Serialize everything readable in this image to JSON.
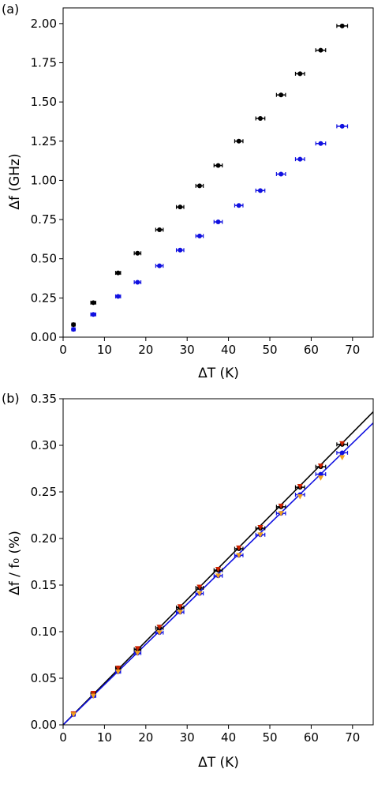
{
  "chart_data": [
    {
      "panel_label": "(a)",
      "type": "scatter",
      "xlabel": "ΔT (K)",
      "ylabel": "Δf (GHz)",
      "xlim": [
        0,
        75
      ],
      "ylim": [
        0,
        2.1
      ],
      "xticks": [
        0,
        10,
        20,
        30,
        40,
        50,
        60,
        70
      ],
      "yticks": [
        0.0,
        0.25,
        0.5,
        0.75,
        1.0,
        1.25,
        1.5,
        1.75,
        2.0
      ],
      "ytick_labels": [
        "0.00",
        "0.25",
        "0.50",
        "0.75",
        "1.00",
        "1.25",
        "1.50",
        "1.75",
        "2.00"
      ],
      "grid": false,
      "series": [
        {
          "color": "#000000",
          "points": [
            {
              "x": 2.5,
              "y": 0.08,
              "xerr": 0.4
            },
            {
              "x": 7.3,
              "y": 0.22,
              "xerr": 0.6
            },
            {
              "x": 13.3,
              "y": 0.41,
              "xerr": 0.6
            },
            {
              "x": 18.0,
              "y": 0.535,
              "xerr": 0.8
            },
            {
              "x": 23.3,
              "y": 0.685,
              "xerr": 0.9
            },
            {
              "x": 28.3,
              "y": 0.83,
              "xerr": 0.9
            },
            {
              "x": 33.0,
              "y": 0.965,
              "xerr": 0.9
            },
            {
              "x": 37.5,
              "y": 1.095,
              "xerr": 1.0
            },
            {
              "x": 42.5,
              "y": 1.25,
              "xerr": 1.0
            },
            {
              "x": 47.7,
              "y": 1.395,
              "xerr": 1.1
            },
            {
              "x": 52.7,
              "y": 1.545,
              "xerr": 1.1
            },
            {
              "x": 57.3,
              "y": 1.68,
              "xerr": 1.1
            },
            {
              "x": 62.3,
              "y": 1.83,
              "xerr": 1.2
            },
            {
              "x": 67.5,
              "y": 1.985,
              "xerr": 1.3
            }
          ]
        },
        {
          "color": "#1010e0",
          "points": [
            {
              "x": 2.5,
              "y": 0.05,
              "xerr": 0.4
            },
            {
              "x": 7.3,
              "y": 0.145,
              "xerr": 0.6
            },
            {
              "x": 13.3,
              "y": 0.26,
              "xerr": 0.6
            },
            {
              "x": 18.0,
              "y": 0.35,
              "xerr": 0.8
            },
            {
              "x": 23.3,
              "y": 0.455,
              "xerr": 0.9
            },
            {
              "x": 28.3,
              "y": 0.555,
              "xerr": 0.9
            },
            {
              "x": 33.0,
              "y": 0.645,
              "xerr": 0.9
            },
            {
              "x": 37.5,
              "y": 0.735,
              "xerr": 1.0
            },
            {
              "x": 42.5,
              "y": 0.84,
              "xerr": 1.0
            },
            {
              "x": 47.7,
              "y": 0.935,
              "xerr": 1.1
            },
            {
              "x": 52.7,
              "y": 1.04,
              "xerr": 1.1
            },
            {
              "x": 57.3,
              "y": 1.135,
              "xerr": 1.1
            },
            {
              "x": 62.3,
              "y": 1.235,
              "xerr": 1.2
            },
            {
              "x": 67.5,
              "y": 1.345,
              "xerr": 1.3
            }
          ]
        }
      ]
    },
    {
      "panel_label": "(b)",
      "type": "scatter",
      "xlabel": "ΔT (K)",
      "ylabel": "Δf / f₀ (%)",
      "xlim": [
        0,
        75
      ],
      "ylim": [
        0,
        0.35
      ],
      "xticks": [
        0,
        10,
        20,
        30,
        40,
        50,
        60,
        70
      ],
      "yticks": [
        0.0,
        0.05,
        0.1,
        0.15,
        0.2,
        0.25,
        0.3,
        0.35
      ],
      "ytick_labels": [
        "0.00",
        "0.05",
        "0.10",
        "0.15",
        "0.20",
        "0.25",
        "0.30",
        "0.35"
      ],
      "grid": false,
      "fit_lines": [
        {
          "color": "#000000",
          "x": [
            0,
            75
          ],
          "y": [
            0.0,
            0.336
          ]
        },
        {
          "color": "#1010e0",
          "x": [
            0,
            75
          ],
          "y": [
            0.0,
            0.324
          ]
        }
      ],
      "series": [
        {
          "color": "#000000",
          "points": [
            {
              "x": 2.5,
              "y": 0.012,
              "xerr": 0.4
            },
            {
              "x": 7.3,
              "y": 0.033,
              "xerr": 0.6
            },
            {
              "x": 13.3,
              "y": 0.061,
              "xerr": 0.6
            },
            {
              "x": 18.0,
              "y": 0.081,
              "xerr": 0.8
            },
            {
              "x": 23.3,
              "y": 0.104,
              "xerr": 0.9
            },
            {
              "x": 28.3,
              "y": 0.126,
              "xerr": 0.9
            },
            {
              "x": 33.0,
              "y": 0.147,
              "xerr": 0.9
            },
            {
              "x": 37.5,
              "y": 0.166,
              "xerr": 1.0
            },
            {
              "x": 42.5,
              "y": 0.189,
              "xerr": 1.0
            },
            {
              "x": 47.7,
              "y": 0.211,
              "xerr": 1.1
            },
            {
              "x": 52.7,
              "y": 0.234,
              "xerr": 1.1
            },
            {
              "x": 57.3,
              "y": 0.255,
              "xerr": 1.1
            },
            {
              "x": 62.3,
              "y": 0.277,
              "xerr": 1.2
            },
            {
              "x": 67.5,
              "y": 0.301,
              "xerr": 1.3
            }
          ]
        },
        {
          "color": "#1010e0",
          "points": [
            {
              "x": 2.5,
              "y": 0.011,
              "xerr": 0.4
            },
            {
              "x": 7.3,
              "y": 0.031,
              "xerr": 0.6
            },
            {
              "x": 13.3,
              "y": 0.057,
              "xerr": 0.6
            },
            {
              "x": 18.0,
              "y": 0.077,
              "xerr": 0.8
            },
            {
              "x": 23.3,
              "y": 0.099,
              "xerr": 0.9
            },
            {
              "x": 28.3,
              "y": 0.121,
              "xerr": 0.9
            },
            {
              "x": 33.0,
              "y": 0.141,
              "xerr": 0.9
            },
            {
              "x": 37.5,
              "y": 0.16,
              "xerr": 1.0
            },
            {
              "x": 42.5,
              "y": 0.182,
              "xerr": 1.0
            },
            {
              "x": 47.7,
              "y": 0.204,
              "xerr": 1.1
            },
            {
              "x": 52.7,
              "y": 0.227,
              "xerr": 1.1
            },
            {
              "x": 57.3,
              "y": 0.247,
              "xerr": 1.1
            },
            {
              "x": 62.3,
              "y": 0.269,
              "xerr": 1.2
            },
            {
              "x": 67.5,
              "y": 0.292,
              "xerr": 1.3
            }
          ]
        },
        {
          "color": "#cc2200",
          "marker": "triangle-down",
          "points": [
            {
              "x": 2.5,
              "y": 0.012
            },
            {
              "x": 7.3,
              "y": 0.034
            },
            {
              "x": 13.3,
              "y": 0.061
            },
            {
              "x": 18.0,
              "y": 0.082
            },
            {
              "x": 23.3,
              "y": 0.105
            },
            {
              "x": 28.3,
              "y": 0.127
            },
            {
              "x": 33.0,
              "y": 0.148
            },
            {
              "x": 37.5,
              "y": 0.167
            },
            {
              "x": 42.5,
              "y": 0.19
            },
            {
              "x": 47.7,
              "y": 0.212
            },
            {
              "x": 52.7,
              "y": 0.235
            },
            {
              "x": 57.3,
              "y": 0.256
            },
            {
              "x": 62.3,
              "y": 0.278
            },
            {
              "x": 67.5,
              "y": 0.302
            }
          ]
        },
        {
          "color": "#f0a020",
          "marker": "triangle-down",
          "points": [
            {
              "x": 2.5,
              "y": 0.011
            },
            {
              "x": 7.3,
              "y": 0.031
            },
            {
              "x": 13.3,
              "y": 0.057
            },
            {
              "x": 18.0,
              "y": 0.077
            },
            {
              "x": 23.3,
              "y": 0.099
            },
            {
              "x": 28.3,
              "y": 0.121
            },
            {
              "x": 33.0,
              "y": 0.141
            },
            {
              "x": 37.5,
              "y": 0.16
            },
            {
              "x": 42.5,
              "y": 0.182
            },
            {
              "x": 47.7,
              "y": 0.204
            },
            {
              "x": 52.7,
              "y": 0.227
            },
            {
              "x": 57.3,
              "y": 0.245
            },
            {
              "x": 62.3,
              "y": 0.265
            },
            {
              "x": 67.5,
              "y": 0.287
            }
          ]
        }
      ]
    }
  ]
}
